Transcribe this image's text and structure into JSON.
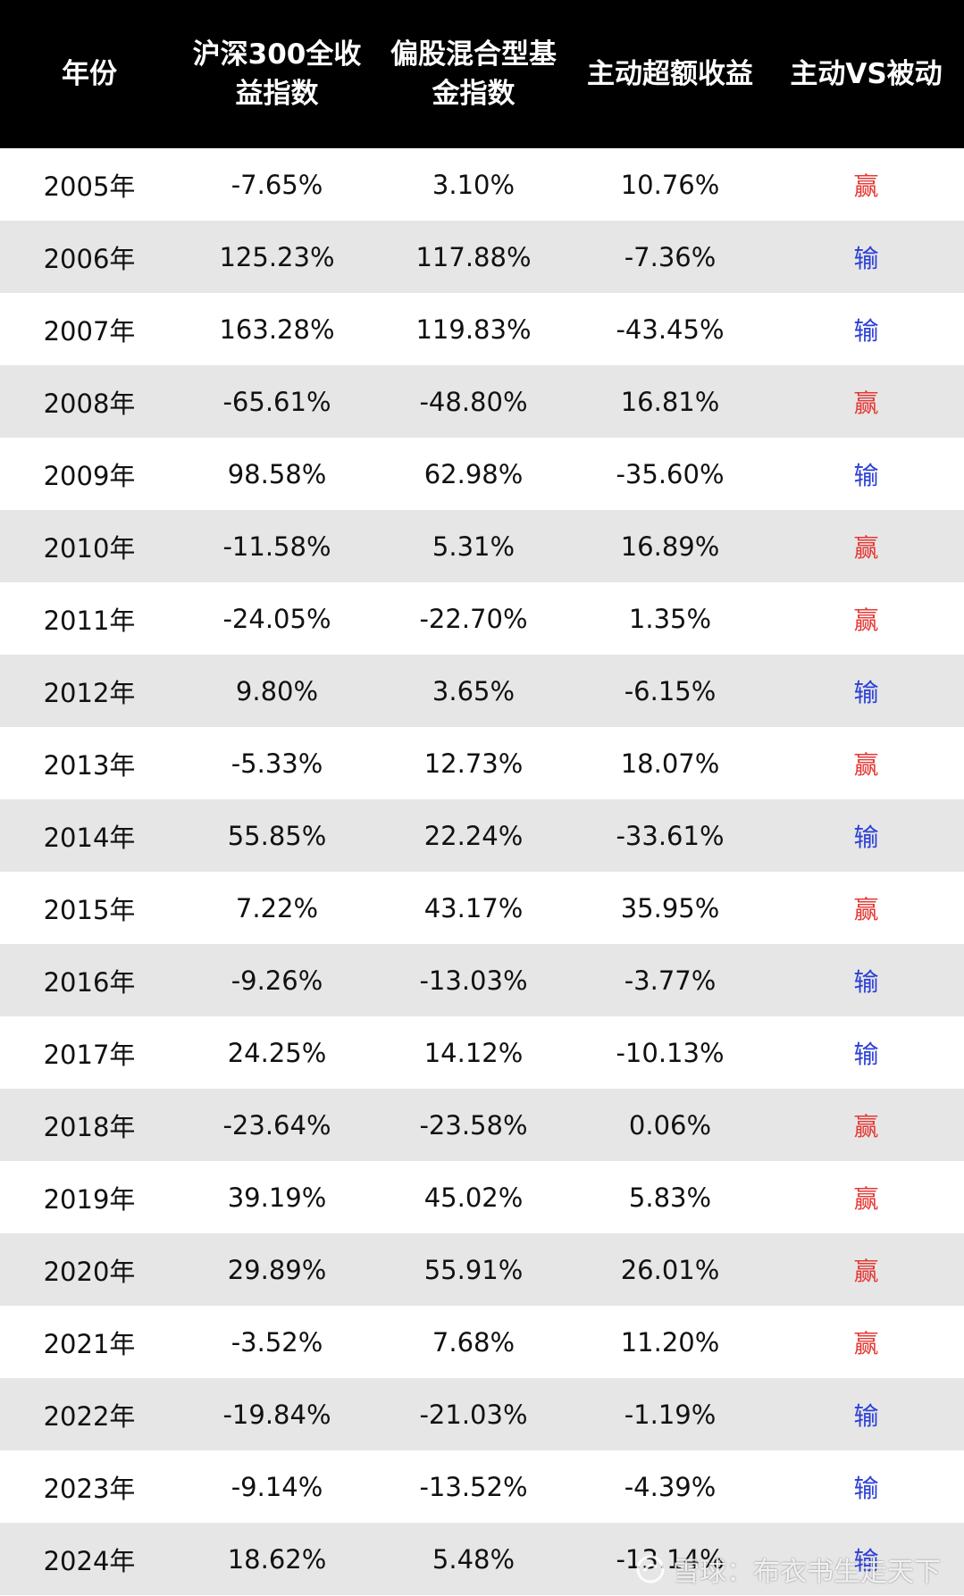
{
  "colors": {
    "header_bg": "#000000",
    "header_text": "#ffffff",
    "alt_row_bg": "#e6e6e6",
    "win": "#e53935",
    "lose": "#2b3fd6"
  },
  "chart_data": {
    "type": "table",
    "columns": [
      "年份",
      "沪深300全收益指数",
      "偏股混合型基金指数",
      "主动超额收益",
      "主动VS被动"
    ],
    "rows": [
      [
        "2005年",
        "-7.65%",
        "3.10%",
        "10.76%",
        "赢"
      ],
      [
        "2006年",
        "125.23%",
        "117.88%",
        "-7.36%",
        "输"
      ],
      [
        "2007年",
        "163.28%",
        "119.83%",
        "-43.45%",
        "输"
      ],
      [
        "2008年",
        "-65.61%",
        "-48.80%",
        "16.81%",
        "赢"
      ],
      [
        "2009年",
        "98.58%",
        "62.98%",
        "-35.60%",
        "输"
      ],
      [
        "2010年",
        "-11.58%",
        "5.31%",
        "16.89%",
        "赢"
      ],
      [
        "2011年",
        "-24.05%",
        "-22.70%",
        "1.35%",
        "赢"
      ],
      [
        "2012年",
        "9.80%",
        "3.65%",
        "-6.15%",
        "输"
      ],
      [
        "2013年",
        "-5.33%",
        "12.73%",
        "18.07%",
        "赢"
      ],
      [
        "2014年",
        "55.85%",
        "22.24%",
        "-33.61%",
        "输"
      ],
      [
        "2015年",
        "7.22%",
        "43.17%",
        "35.95%",
        "赢"
      ],
      [
        "2016年",
        "-9.26%",
        "-13.03%",
        "-3.77%",
        "输"
      ],
      [
        "2017年",
        "24.25%",
        "14.12%",
        "-10.13%",
        "输"
      ],
      [
        "2018年",
        "-23.64%",
        "-23.58%",
        "0.06%",
        "赢"
      ],
      [
        "2019年",
        "39.19%",
        "45.02%",
        "5.83%",
        "赢"
      ],
      [
        "2020年",
        "29.89%",
        "55.91%",
        "26.01%",
        "赢"
      ],
      [
        "2021年",
        "-3.52%",
        "7.68%",
        "11.20%",
        "赢"
      ],
      [
        "2022年",
        "-19.84%",
        "-21.03%",
        "-1.19%",
        "输"
      ],
      [
        "2023年",
        "-9.14%",
        "-13.52%",
        "-4.39%",
        "输"
      ],
      [
        "2024年",
        "18.62%",
        "5.48%",
        "-13.14%",
        "输"
      ]
    ]
  },
  "watermark": {
    "text": "雪球：布衣书生走天下",
    "icon": "snowball-logo-icon"
  }
}
